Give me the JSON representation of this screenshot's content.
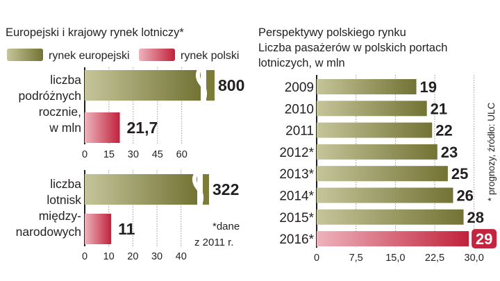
{
  "colors": {
    "olive": "#7c7d3a",
    "olive_light": "#b7b78a",
    "red": "#c4243e",
    "red_light": "#e8a3ad",
    "grid": "#8a8a8a",
    "text": "#231f20"
  },
  "left": {
    "title": "Europejski i krajowy rynek lotniczy*",
    "legend": {
      "european": "rynek europejski",
      "polish": "rynek polski"
    },
    "footnote": [
      "*dane",
      "z 2011 r."
    ]
  },
  "right": {
    "title": [
      "Perspektywy polskiego rynku",
      "Liczba pasażerów w polskich portach",
      "lotniczych, w mln"
    ],
    "side_note": "* prognozy, źródło: ULC"
  },
  "chart_data": [
    {
      "type": "bar",
      "orientation": "horizontal",
      "label": [
        "liczba",
        "podróżnych",
        "rocznie,",
        "w mln"
      ],
      "categories": [
        "rynek europejski",
        "rynek polski"
      ],
      "values": [
        800,
        21.7
      ],
      "value_labels": [
        "800",
        "21,7"
      ],
      "axis_break": true,
      "xlim": [
        0,
        70
      ],
      "xticks": [
        0,
        15,
        30,
        45,
        60
      ],
      "xtick_labels": [
        "0",
        "15",
        "30",
        "45",
        "60"
      ],
      "grid": true
    },
    {
      "type": "bar",
      "orientation": "horizontal",
      "label": [
        "liczba",
        "lotnisk",
        "między-",
        "narodowych"
      ],
      "categories": [
        "rynek europejski",
        "rynek polski"
      ],
      "values": [
        322,
        11
      ],
      "value_labels": [
        "322",
        "11"
      ],
      "axis_break": true,
      "xlim": [
        0,
        47
      ],
      "xticks": [
        0,
        10,
        20,
        30,
        40
      ],
      "xtick_labels": [
        "0",
        "10",
        "20",
        "30",
        "40"
      ],
      "grid": true
    },
    {
      "type": "bar",
      "orientation": "horizontal",
      "categories": [
        "2009",
        "2010",
        "2011",
        "2012*",
        "2013*",
        "2014*",
        "2015*",
        "2016*"
      ],
      "values": [
        19,
        21,
        22,
        23,
        25,
        26,
        28,
        29
      ],
      "value_labels": [
        "19",
        "21",
        "22",
        "23",
        "25",
        "26",
        "28",
        "29"
      ],
      "highlight_last": true,
      "xlim": [
        0,
        31.5
      ],
      "xticks": [
        0,
        7.5,
        15,
        22.5,
        30
      ],
      "xtick_labels": [
        "0",
        "7,5",
        "15,0",
        "22,5",
        "30,0"
      ],
      "grid": true
    }
  ]
}
